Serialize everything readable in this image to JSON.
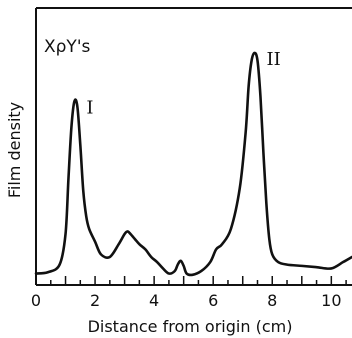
{
  "chart_data": {
    "type": "line",
    "title": "",
    "annotation": "XρY's",
    "xlabel": "Distance from origin (cm)",
    "ylabel": "Film density",
    "xlim": [
      0,
      10.7
    ],
    "ylim": [
      0,
      1
    ],
    "x_ticks": [
      0,
      2,
      4,
      6,
      8,
      10
    ],
    "x_tick_labels": [
      "0",
      "2",
      "4",
      "6",
      "8",
      "10"
    ],
    "y_tick_labels": [],
    "grid": false,
    "series": [
      {
        "name": "",
        "x": [
          0.0,
          0.4,
          0.8,
          1.0,
          1.1,
          1.2,
          1.3,
          1.4,
          1.5,
          1.6,
          1.7,
          1.8,
          2.0,
          2.2,
          2.5,
          2.8,
          3.0,
          3.1,
          3.2,
          3.35,
          3.5,
          3.7,
          3.9,
          4.1,
          4.3,
          4.5,
          4.7,
          4.8,
          4.9,
          5.0,
          5.1,
          5.3,
          5.6,
          5.9,
          6.1,
          6.3,
          6.6,
          6.9,
          7.1,
          7.2,
          7.3,
          7.4,
          7.5,
          7.6,
          7.7,
          7.8,
          7.9,
          8.0,
          8.2,
          8.5,
          9.0,
          9.5,
          10.0,
          10.4,
          10.7
        ],
        "y": [
          0.045,
          0.05,
          0.08,
          0.2,
          0.42,
          0.62,
          0.72,
          0.7,
          0.55,
          0.37,
          0.27,
          0.22,
          0.17,
          0.12,
          0.11,
          0.16,
          0.2,
          0.21,
          0.2,
          0.18,
          0.16,
          0.14,
          0.11,
          0.09,
          0.065,
          0.045,
          0.055,
          0.08,
          0.095,
          0.075,
          0.045,
          0.04,
          0.055,
          0.09,
          0.14,
          0.16,
          0.22,
          0.38,
          0.6,
          0.78,
          0.88,
          0.91,
          0.88,
          0.74,
          0.52,
          0.32,
          0.18,
          0.12,
          0.09,
          0.08,
          0.075,
          0.07,
          0.065,
          0.09,
          0.11
        ]
      }
    ],
    "peak_labels": [
      {
        "label": "I",
        "x": 1.3
      },
      {
        "label": "II",
        "x": 7.4
      }
    ]
  }
}
